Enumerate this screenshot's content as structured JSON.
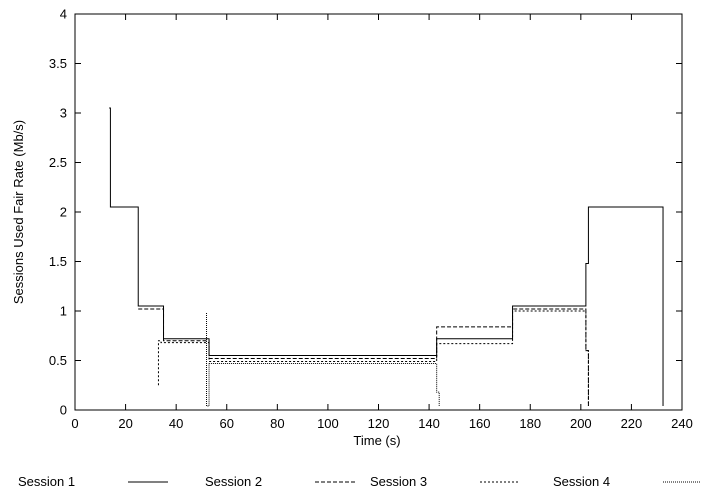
{
  "chart_data": {
    "type": "line",
    "title": "",
    "xlabel": "Time (s)",
    "ylabel": "Sessions Used Fair Rate (Mb/s)",
    "xlim": [
      0,
      240
    ],
    "ylim": [
      0,
      4
    ],
    "xticks": [
      0,
      20,
      40,
      60,
      80,
      100,
      120,
      140,
      160,
      180,
      200,
      220,
      240
    ],
    "yticks": [
      0,
      0.5,
      1,
      1.5,
      2,
      2.5,
      3,
      3.5,
      4
    ],
    "ytick_labels": [
      "0",
      "0.5",
      "1",
      "1.5",
      "2",
      "2.5",
      "3",
      "3.5",
      "4"
    ],
    "grid": false,
    "legend_position": "bottom",
    "series": [
      {
        "name": "Session 1",
        "style": "solid",
        "color": "#000000",
        "x": [
          13.5,
          14,
          14,
          25,
          25,
          35,
          35,
          53,
          53,
          143,
          143,
          173,
          173,
          202,
          202,
          203,
          203,
          232.5,
          232.5
        ],
        "y": [
          3.05,
          3.05,
          2.05,
          2.05,
          1.05,
          1.05,
          0.72,
          0.72,
          0.55,
          0.55,
          0.72,
          0.72,
          1.05,
          1.05,
          1.48,
          1.48,
          2.05,
          2.05,
          0.04
        ]
      },
      {
        "name": "Session 2",
        "style": "dashed",
        "color": "#000000",
        "x": [
          25,
          35,
          35,
          53,
          53,
          143,
          143,
          173,
          173,
          202,
          202,
          203,
          203
        ],
        "y": [
          1.02,
          1.02,
          0.7,
          0.7,
          0.52,
          0.52,
          0.84,
          0.84,
          1.02,
          1.02,
          0.6,
          0.6,
          0.04
        ]
      },
      {
        "name": "Session 3",
        "style": "dotted",
        "color": "#000000",
        "x": [
          33,
          33,
          34,
          34,
          53,
          53,
          143,
          143,
          173,
          173,
          202,
          202,
          203,
          203
        ],
        "y": [
          0.25,
          0.7,
          0.7,
          0.68,
          0.68,
          0.49,
          0.49,
          0.67,
          0.67,
          1.0,
          1.0,
          0.6,
          0.6,
          0.04
        ]
      },
      {
        "name": "Session 4",
        "style": "densedot",
        "color": "#000000",
        "x": [
          52,
          52,
          53,
          53,
          143,
          143,
          144,
          144
        ],
        "y": [
          0.98,
          0.04,
          0.04,
          0.47,
          0.47,
          0.18,
          0.18,
          0.04
        ]
      }
    ]
  }
}
